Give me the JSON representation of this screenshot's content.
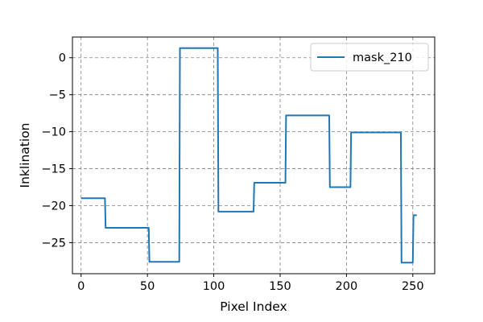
{
  "chart_data": {
    "type": "line",
    "title": "",
    "xlabel": "Pixel Index",
    "ylabel": "Inklination",
    "xlim": [
      -6.5,
      266.5
    ],
    "ylim": [
      -29.2,
      2.8
    ],
    "xticks": [
      0,
      50,
      100,
      150,
      200,
      250
    ],
    "yticks": [
      0,
      -5,
      -10,
      -15,
      -20,
      -25
    ],
    "ytick_labels": [
      "0",
      "−5",
      "−10",
      "−15",
      "−20",
      "−25"
    ],
    "grid": true,
    "legend": "top-right",
    "series": [
      {
        "name": "mask_210",
        "color": "#1f77b4",
        "x": [
          0,
          18,
          18.5,
          51,
          51.5,
          74,
          74.5,
          103,
          103.5,
          130,
          130.5,
          154,
          154.5,
          187,
          187.5,
          203,
          203.5,
          241,
          241.5,
          250,
          250.5,
          253
        ],
        "y": [
          -19.0,
          -19.0,
          -23.0,
          -23.0,
          -27.6,
          -27.6,
          1.3,
          1.3,
          -20.8,
          -20.8,
          -16.9,
          -16.9,
          -7.8,
          -7.8,
          -17.5,
          -17.5,
          -10.1,
          -10.1,
          -27.7,
          -27.7,
          -21.3,
          -21.3
        ]
      }
    ]
  }
}
